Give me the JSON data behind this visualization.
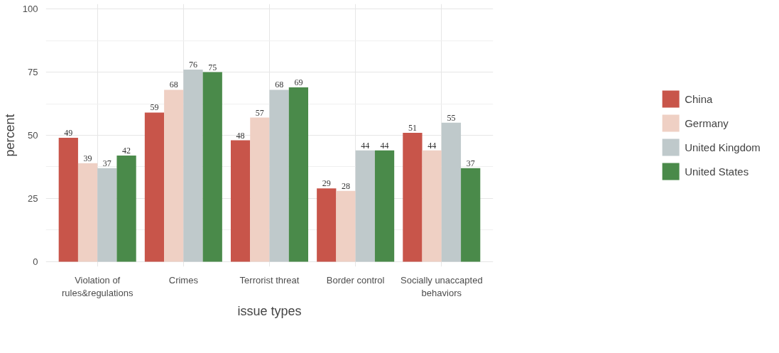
{
  "chart_data": {
    "type": "bar",
    "xlabel": "issue types",
    "ylabel": "percent",
    "categories": [
      "Violation of\nrules&regulations",
      "Crimes",
      "Terrorist threat",
      "Border control",
      "Socially unaccapted\nbehaviors"
    ],
    "series": [
      {
        "name": "China",
        "color": "#c8554a",
        "values": [
          49,
          59,
          48,
          29,
          51
        ]
      },
      {
        "name": "Germany",
        "color": "#efd0c4",
        "values": [
          39,
          68,
          57,
          28,
          44
        ]
      },
      {
        "name": "United Kingdom",
        "color": "#bfc9cb",
        "values": [
          37,
          76,
          68,
          44,
          55
        ]
      },
      {
        "name": "United States",
        "color": "#4a8a4a",
        "values": [
          42,
          75,
          69,
          44,
          37
        ]
      }
    ],
    "ylim": [
      -2,
      102
    ],
    "yticks": [
      0,
      25,
      50,
      75,
      100
    ],
    "grid": true,
    "legend": "right",
    "data_labels": true
  }
}
